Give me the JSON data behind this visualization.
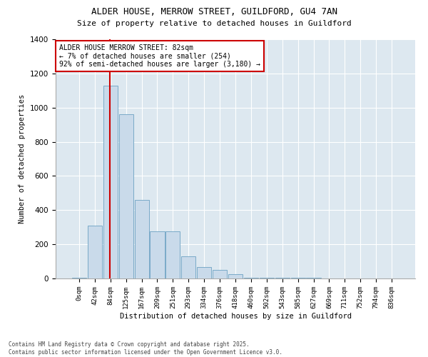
{
  "title_line1": "ALDER HOUSE, MERROW STREET, GUILDFORD, GU4 7AN",
  "title_line2": "Size of property relative to detached houses in Guildford",
  "xlabel": "Distribution of detached houses by size in Guildford",
  "ylabel": "Number of detached properties",
  "bin_labels": [
    "0sqm",
    "42sqm",
    "84sqm",
    "125sqm",
    "167sqm",
    "209sqm",
    "251sqm",
    "293sqm",
    "334sqm",
    "376sqm",
    "418sqm",
    "460sqm",
    "502sqm",
    "543sqm",
    "585sqm",
    "627sqm",
    "669sqm",
    "711sqm",
    "752sqm",
    "794sqm",
    "836sqm"
  ],
  "bar_heights": [
    5,
    310,
    1130,
    960,
    460,
    275,
    275,
    130,
    65,
    50,
    25,
    5,
    5,
    5,
    5,
    5,
    0,
    0,
    0,
    0,
    0
  ],
  "bar_color": "#c9daea",
  "bar_edge_color": "#7aaac8",
  "annotation_text_line1": "ALDER HOUSE MERROW STREET: 82sqm",
  "annotation_text_line2": "← 7% of detached houses are smaller (254)",
  "annotation_text_line3": "92% of semi-detached houses are larger (3,180) →",
  "annotation_box_color": "#ffffff",
  "annotation_box_edge_color": "#cc0000",
  "vline_color": "#cc0000",
  "background_color": "#dde8f0",
  "grid_color": "#ffffff",
  "fig_background": "#ffffff",
  "ylim": [
    0,
    1400
  ],
  "yticks": [
    0,
    200,
    400,
    600,
    800,
    1000,
    1200,
    1400
  ],
  "footer_line1": "Contains HM Land Registry data © Crown copyright and database right 2025.",
  "footer_line2": "Contains public sector information licensed under the Open Government Licence v3.0."
}
